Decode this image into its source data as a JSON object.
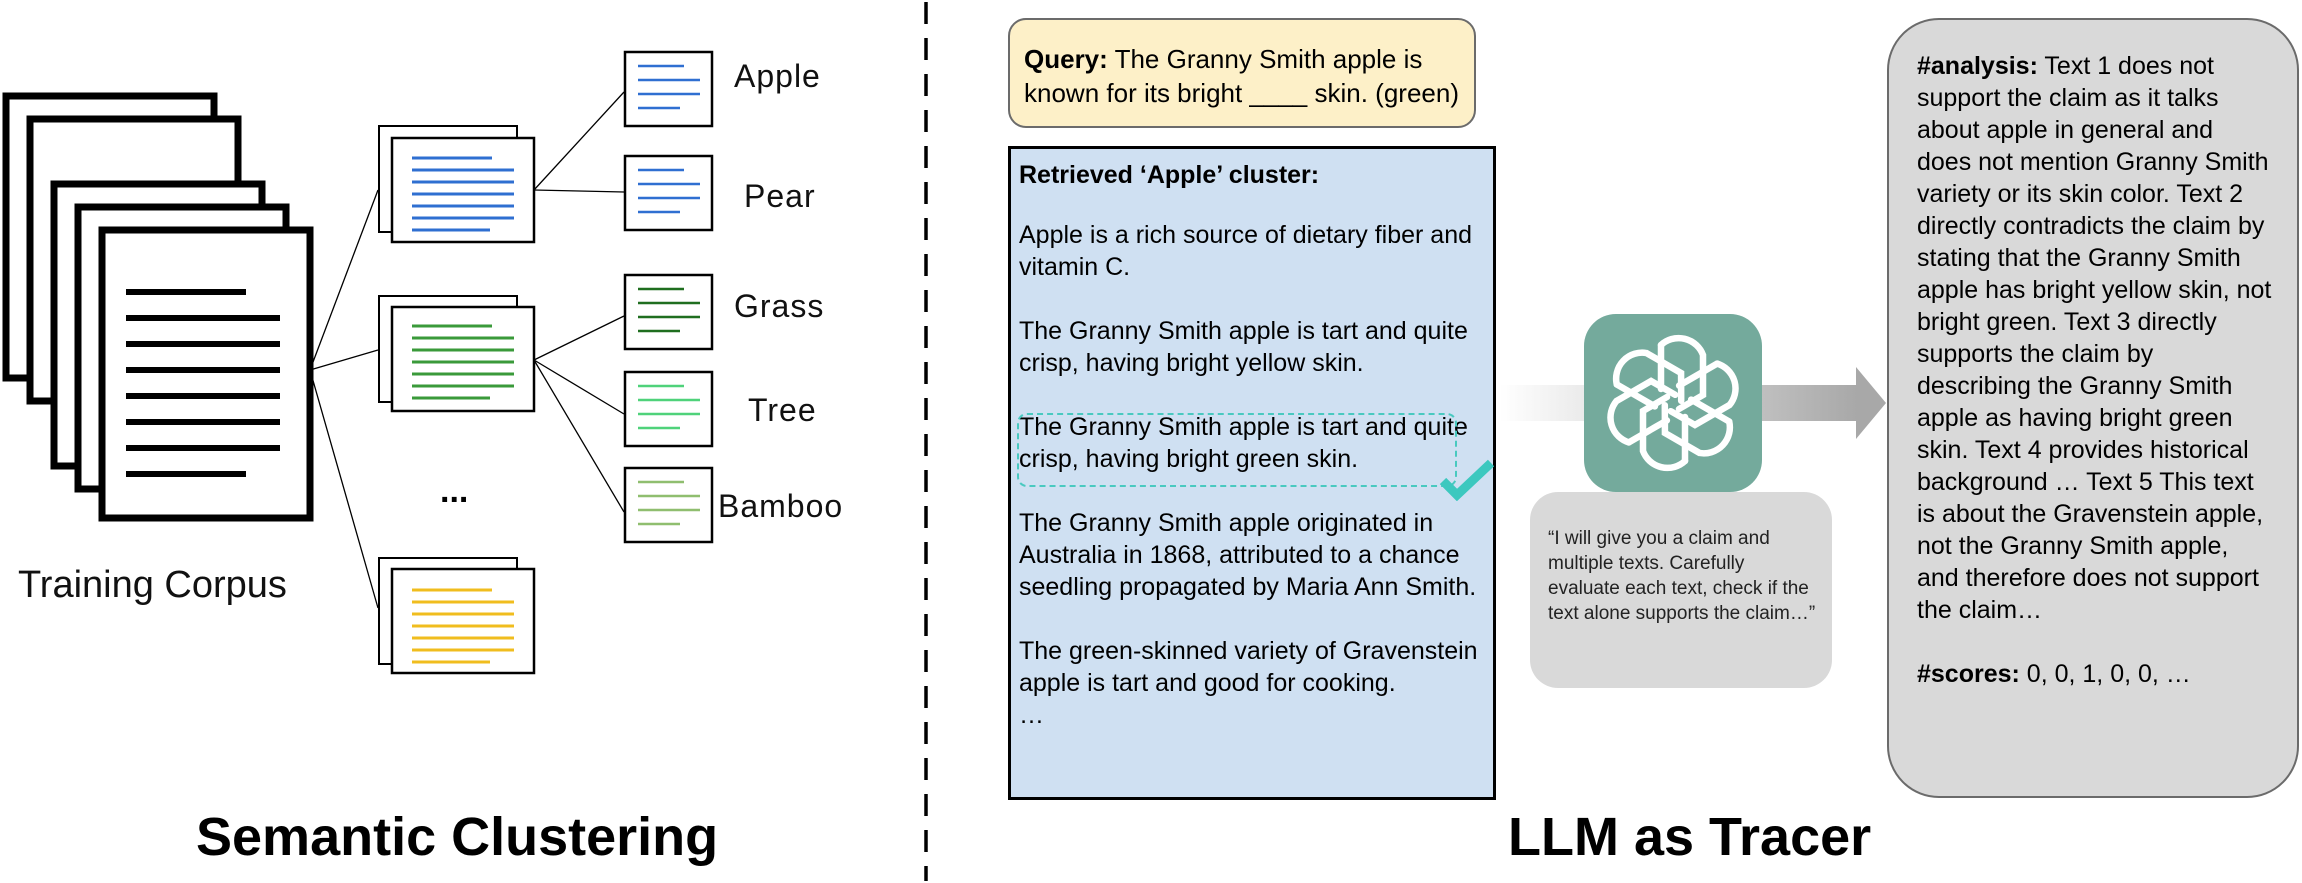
{
  "left_section": {
    "title": "Semantic Clustering",
    "corpus_label": "Training Corpus",
    "ellipsis": "...",
    "clusters": [
      {
        "name": "Apple",
        "color": "#2f6fd1"
      },
      {
        "name": "Pear",
        "color": "#2f6fd1"
      },
      {
        "name": "Grass",
        "color": "#1f6e1f"
      },
      {
        "name": "Tree",
        "color": "#4fd27a"
      },
      {
        "name": "Bamboo",
        "color": "#8fbe6f"
      }
    ],
    "group_colors": {
      "blue": "#2f6fd1",
      "green": "#3a9a3a",
      "yellow": "#f0bd1e"
    }
  },
  "right_section": {
    "title": "LLM as Tracer",
    "query": {
      "label": "Query:",
      "text": " The Granny Smith apple is known for its bright ____ skin.  (green)"
    },
    "cluster": {
      "title": "Retrieved ‘Apple’ cluster:",
      "texts": [
        "Apple is a rich source of dietary fiber and vitamin C.",
        "The Granny Smith apple is tart and quite crisp, having bright yellow skin.",
        "The Granny Smith apple is tart and quite crisp, having bright green skin.",
        "The Granny Smith apple originated in Australia in 1868, attributed to a chance seedling propagated by Maria Ann Smith.",
        "The green-skinned variety of Gravenstein apple is tart and good for cooking."
      ],
      "more": "…",
      "highlight_color": "#49c9c0"
    },
    "prompt": "“I will give you a claim and multiple texts. Carefully evaluate each text, check if the text alone supports the claim…”",
    "logo_icon": "openai-logo-icon",
    "analysis": {
      "label": "#analysis:",
      "text": " Text 1 does not support the claim as it talks about apple in general and does not mention Granny Smith variety or its skin color. Text 2 directly contradicts the claim by stating that the Granny Smith apple has bright yellow skin, not bright green. Text 3 directly supports the claim by describing the Granny Smith apple as having bright green skin. Text 4 provides historical background … Text 5 This text is about the Gravenstein apple, not the Granny Smith apple, and therefore does not support the claim…",
      "scores_label": "#scores:",
      "scores": " 0, 0, 1, 0, 0, …"
    }
  }
}
